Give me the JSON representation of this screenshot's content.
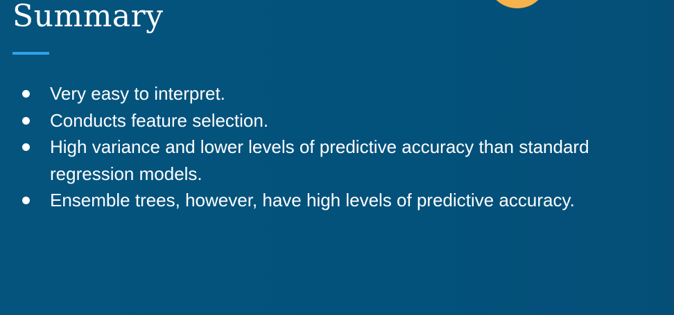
{
  "slide": {
    "title": "Summary",
    "bullets": [
      "Very easy to interpret.",
      "Conducts feature selection.",
      "High variance and lower levels of predictive accuracy than standard regression models.",
      "Ensemble trees, however, have high levels of predictive accuracy."
    ]
  },
  "colors": {
    "background": "#03527c",
    "accent_rule": "#2ea2e8",
    "accent_circle": "#f6b24b",
    "text": "#ffffff"
  }
}
